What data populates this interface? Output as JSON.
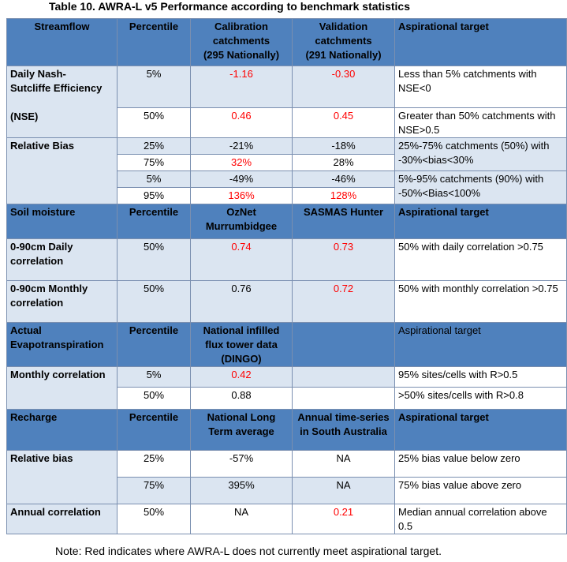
{
  "title": "Table 10. AWRA-L v5 Performance according to benchmark statistics",
  "note": "Note: Red indicates where AWRA-L does not currently meet aspirational target.",
  "colors": {
    "header": "#4f81bd",
    "light": "#dbe5f1",
    "red": "#ff0000"
  },
  "streamflow": {
    "header": {
      "col1": "Streamflow",
      "col2": "Percentile",
      "col3_line1": "Calibration",
      "col3_line2": "catchments",
      "col3_line3": "(295 Nationally)",
      "col4_line1": "Validation",
      "col4_line2": "catchments",
      "col4_line3": "(291 Nationally)",
      "col5": "Aspirational target"
    },
    "nse": {
      "label_line1": "Daily Nash-",
      "label_line2": "Sutcliffe Efficiency",
      "label_line3": "(NSE)",
      "row1": {
        "pct": "5%",
        "cal": "-1.16",
        "val": "-0.30",
        "target": "Less than 5% catchments with NSE<0"
      },
      "row2": {
        "pct": "50%",
        "cal": "0.46",
        "val": "0.45",
        "target": "Greater than 50% catchments with NSE>0.5"
      }
    },
    "bias": {
      "label": "Relative Bias",
      "row1": {
        "pct": "25%",
        "cal": "-21%",
        "val": "-18%"
      },
      "row2": {
        "pct": "75%",
        "cal": "32%",
        "val": "28%"
      },
      "target_a_line1": "25%-75% catchments (50%) with",
      "target_a_line2": "-30%<bias<30%",
      "row3": {
        "pct": "5%",
        "cal": "-49%",
        "val": "-46%"
      },
      "row4": {
        "pct": "95%",
        "cal": "136%",
        "val": "128%"
      },
      "target_b_line1": "5%-95% catchments (90%) with",
      "target_b_line2": "-50%<Bias<100%"
    }
  },
  "soil": {
    "header": {
      "col1": "Soil moisture",
      "col2": "Percentile",
      "col3_line1": "OzNet",
      "col3_line2": "Murrumbidgee",
      "col4": "SASMAS Hunter",
      "col5": "Aspirational target"
    },
    "daily": {
      "label": "0-90cm Daily correlation",
      "pct": "50%",
      "a": "0.74",
      "b": "0.73",
      "target": "50% with daily correlation >0.75"
    },
    "monthly": {
      "label": "0-90cm Monthly correlation",
      "pct": "50%",
      "a": "0.76",
      "b": "0.72",
      "target": "50% with monthly correlation >0.75"
    }
  },
  "et": {
    "header": {
      "col1": "Actual Evapotranspiration",
      "col2": "Percentile",
      "col3_line1": "National infilled",
      "col3_line2": "flux tower data",
      "col3_line3": "(DINGO)",
      "col4": "",
      "col5": "Aspirational target"
    },
    "label": "Monthly correlation",
    "row1": {
      "pct": "5%",
      "a": "0.42",
      "target": "95% sites/cells with R>0.5"
    },
    "row2": {
      "pct": "50%",
      "a": "0.88",
      "target": ">50% sites/cells with R>0.8"
    }
  },
  "recharge": {
    "header": {
      "col1": "Recharge",
      "col2": "Percentile",
      "col3_line1": "National Long",
      "col3_line2": "Term average",
      "col4_line1": "Annual time-series",
      "col4_line2": "in South Australia",
      "col5": "Aspirational target"
    },
    "bias_label": "Relative bias",
    "row1": {
      "pct": "25%",
      "a": "-57%",
      "b": "NA",
      "target": "25% bias value below zero"
    },
    "row2": {
      "pct": "75%",
      "a": "395%",
      "b": "NA",
      "target": "75% bias value above zero"
    },
    "corr": {
      "label": "Annual correlation",
      "pct": "50%",
      "a": "NA",
      "b": "0.21",
      "target": "Median annual correlation above 0.5"
    }
  }
}
